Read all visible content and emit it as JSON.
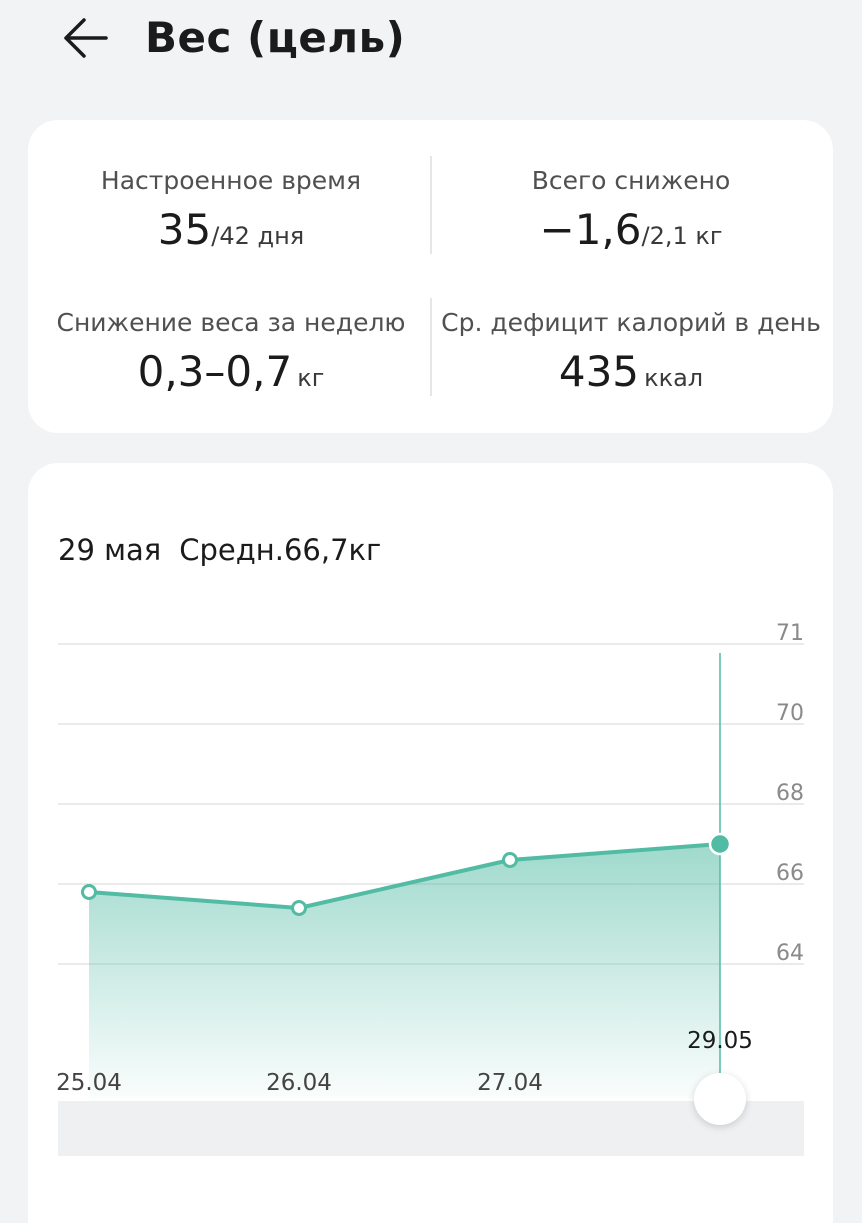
{
  "header": {
    "title": "Вес (цель)",
    "back_icon": "back-arrow-icon"
  },
  "summary": {
    "configured_time": {
      "label": "Настроенное время",
      "value": "35",
      "of": "/42 дня"
    },
    "total_lost": {
      "label": "Всего снижено",
      "value": "−1,6",
      "of": "/2,1 кг"
    },
    "weekly_loss": {
      "label": "Снижение веса за неделю",
      "value": "0,3–0,7",
      "unit": "кг"
    },
    "avg_deficit": {
      "label": "Ср. дефицит калорий в день",
      "value": "435",
      "unit": "ккал"
    }
  },
  "chart": {
    "date": "29 мая",
    "average": "Средн.66,7кг"
  },
  "chart_data": {
    "type": "area",
    "x": [
      "25.04",
      "26.04",
      "27.04",
      "29.05"
    ],
    "values": [
      65.8,
      65.4,
      66.6,
      67.0
    ],
    "y_ticks": [
      "71",
      "70",
      "68",
      "66",
      "64"
    ],
    "y_tick_values": [
      71,
      70,
      68,
      66,
      64
    ],
    "ylim": [
      62,
      71
    ],
    "selected_index": 3,
    "selected_label": "29.05",
    "grid": true,
    "colors": {
      "line": "#52bba4",
      "fill": "#52bba4",
      "grid": "#e3e3e3",
      "axis_text": "#8a8a8a"
    }
  }
}
